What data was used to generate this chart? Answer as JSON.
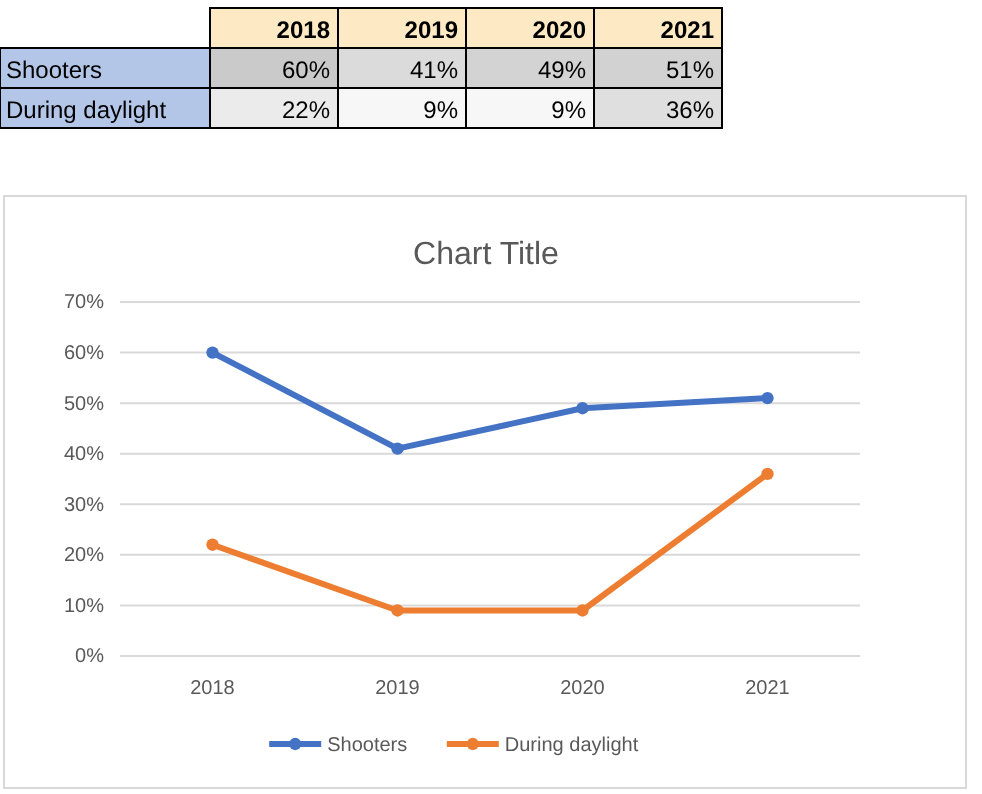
{
  "chart_data": [
    {
      "type": "heatmap",
      "categories": [
        "2018",
        "2019",
        "2020",
        "2021"
      ],
      "y_categories": [
        "Shooters",
        "During daylight"
      ],
      "cells": [
        [
          60,
          41,
          49,
          51
        ],
        [
          22,
          9,
          9,
          36
        ]
      ],
      "cell_labels": [
        [
          "60%",
          "41%",
          "49%",
          "51%"
        ],
        [
          "22%",
          "9%",
          "9%",
          "36%"
        ]
      ]
    },
    {
      "type": "line",
      "title": "Chart Title",
      "categories": [
        "2018",
        "2019",
        "2020",
        "2021"
      ],
      "series": [
        {
          "name": "Shooters",
          "color": "#4472c4",
          "values": [
            60,
            41,
            49,
            51
          ]
        },
        {
          "name": "During daylight",
          "color": "#ed7d31",
          "values": [
            22,
            9,
            9,
            36
          ]
        }
      ],
      "ylim": [
        0,
        70
      ],
      "yticks": [
        {
          "value": 0,
          "label": "0%"
        },
        {
          "value": 10,
          "label": "10%"
        },
        {
          "value": 20,
          "label": "20%"
        },
        {
          "value": 30,
          "label": "30%"
        },
        {
          "value": 40,
          "label": "40%"
        },
        {
          "value": 50,
          "label": "50%"
        },
        {
          "value": 60,
          "label": "60%"
        },
        {
          "value": 70,
          "label": "70%"
        }
      ],
      "grid": "y",
      "legend": "bottom",
      "marker": "circle",
      "line_style": "solid"
    }
  ]
}
